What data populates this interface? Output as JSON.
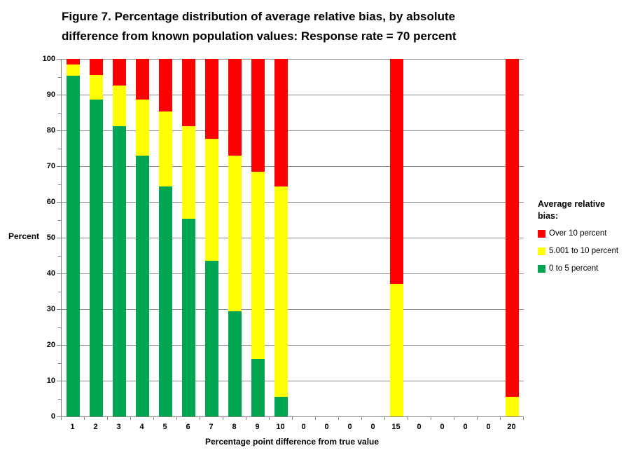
{
  "title": {
    "line1": "Figure 7.  Percentage distribution of average relative bias, by absolute",
    "line2": "difference from known population values:  Response rate = 70 percent"
  },
  "chart_data": {
    "type": "bar",
    "stacked": true,
    "title": "Figure 7. Percentage distribution of average relative bias, by absolute difference from known population values: Response rate = 70 percent",
    "xlabel": "Percentage point difference from true value",
    "ylabel": "Percent",
    "ylim": [
      0,
      100
    ],
    "y_tick_step": 10,
    "y_minor_tick_step": 5,
    "grid": true,
    "categories": [
      "1",
      "2",
      "3",
      "4",
      "5",
      "6",
      "7",
      "8",
      "9",
      "10",
      "0",
      "0",
      "0",
      "0",
      "15",
      "0",
      "0",
      "0",
      "0",
      "20"
    ],
    "series": [
      {
        "name": "0 to 5 percent",
        "color": "#00A651",
        "values": [
          95.2,
          88.6,
          81.2,
          72.9,
          64.3,
          55.3,
          43.5,
          29.4,
          16.0,
          5.5,
          0,
          0,
          0,
          0,
          0,
          0,
          0,
          0,
          0,
          0
        ]
      },
      {
        "name": "5.001 to 10 percent",
        "color": "#FFFF00",
        "values": [
          3.2,
          6.8,
          11.3,
          15.7,
          21.0,
          25.9,
          34.1,
          43.5,
          52.5,
          58.8,
          0,
          0,
          0,
          0,
          37.0,
          0,
          0,
          0,
          0,
          5.5
        ]
      },
      {
        "name": "Over 10 percent",
        "color": "#FF0000",
        "values": [
          1.6,
          4.6,
          7.5,
          11.4,
          14.7,
          18.8,
          22.4,
          27.1,
          31.5,
          35.7,
          0,
          0,
          0,
          0,
          63.0,
          0,
          0,
          0,
          0,
          94.5
        ]
      }
    ],
    "legend": {
      "position": "right",
      "title_line1": "Average relative",
      "title_line2": "bias:",
      "items": [
        {
          "label": "Over 10 percent",
          "color": "#FF0000"
        },
        {
          "label": "5.001 to 10 percent",
          "color": "#FFFF00"
        },
        {
          "label": "0 to 5 percent",
          "color": "#00A651"
        }
      ]
    },
    "colors": {
      "grid_line": "#8C8C8C",
      "axis_line": "#7F7F7F",
      "text": "#000000"
    }
  }
}
